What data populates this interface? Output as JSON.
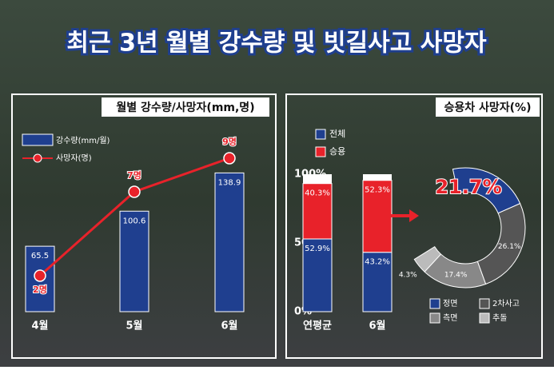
{
  "title": "최근 3년 월별 강수량 및 빗길사고 사망자",
  "chart_data": [
    {
      "type": "bar_line",
      "title": "월별 강수량/사망자(mm,명)",
      "categories": [
        "4월",
        "5월",
        "6월"
      ],
      "series": [
        {
          "name": "강수량(mm/월)",
          "color": "#1f3f8f",
          "values": [
            65.5,
            100.6,
            138.9
          ]
        },
        {
          "name": "사망자(명)",
          "color": "#e8222a",
          "values": [
            2,
            7,
            9
          ],
          "value_labels": [
            "2명",
            "7명",
            "9명"
          ]
        }
      ]
    },
    {
      "type": "stacked_bar",
      "title": "승용차 사망자(%)",
      "categories": [
        "연평균",
        "6월"
      ],
      "ylim": [
        0,
        100
      ],
      "yticks": [
        {
          "value": 0,
          "label": "0%"
        },
        {
          "value": 50,
          "label": "50%"
        },
        {
          "value": 100,
          "label": "100%"
        }
      ],
      "series": [
        {
          "name": "전체",
          "color": "#1f3f8f",
          "values": [
            52.9,
            43.2
          ],
          "value_labels": [
            "52.9%",
            "43.2%"
          ]
        },
        {
          "name": "승용",
          "color": "#e8222a",
          "values": [
            40.3,
            52.3
          ],
          "value_labels": [
            "40.3%",
            "52.3%"
          ]
        }
      ]
    },
    {
      "type": "donut",
      "categories": [
        "정면",
        "2차사고",
        "측면",
        "추돌"
      ],
      "values": [
        21.7,
        26.1,
        17.4,
        4.3
      ],
      "value_labels": [
        "21.7%",
        "26.1%",
        "17.4%",
        "4.3%"
      ],
      "colors": [
        "#1f3f8f",
        "#555555",
        "#888888",
        "#bbbbbb"
      ]
    }
  ]
}
